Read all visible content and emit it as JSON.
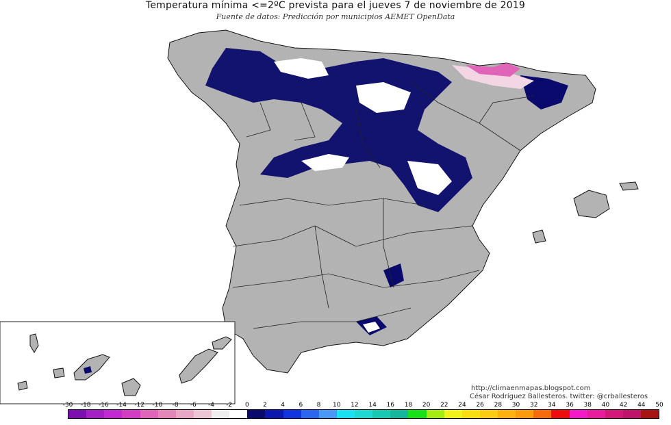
{
  "title": "Temperatura mínima <=2ºC prevista para el jueves 7 de noviembre de 2019",
  "subtitle": "Fuente de datos: Predicción por municipios AEMET OpenData",
  "credits": {
    "url": "http://climaenmapas.blogspot.com",
    "author": "César Rodríguez Ballesteros. twitter: @crballesteros"
  },
  "legend": {
    "ticks": [
      "-30",
      "-18",
      "-16",
      "-14",
      "-12",
      "-10",
      "-8",
      "-6",
      "-4",
      "-2",
      "0",
      "2",
      "4",
      "6",
      "8",
      "10",
      "12",
      "14",
      "16",
      "18",
      "20",
      "22",
      "24",
      "26",
      "28",
      "30",
      "32",
      "34",
      "36",
      "38",
      "40",
      "42",
      "44",
      "50"
    ],
    "colors": [
      "#7b0fb0",
      "#a41fc4",
      "#c229d0",
      "#d43cc2",
      "#e064b8",
      "#e387b8",
      "#e7a8c6",
      "#ecc6d4",
      "#eeeeee",
      "#ffffff",
      "#0a0a6c",
      "#0a18b0",
      "#0f34e0",
      "#2a66f0",
      "#4a98f5",
      "#19e1f3",
      "#1ed8d2",
      "#17c8b2",
      "#14b79c",
      "#16e216",
      "#a4ec12",
      "#f0f21a",
      "#f9df12",
      "#fccc12",
      "#fdb10f",
      "#fb9a0d",
      "#f86b0c",
      "#ef0c0c",
      "#f51ac8",
      "#e81c9c",
      "#d41878",
      "#c0146a",
      "#a81414"
    ]
  },
  "map": {
    "background": "#b3b3b3",
    "frost_color": "#0a0a6c",
    "snow_color": "#ffffff",
    "extreme_color": "#e064b8"
  }
}
